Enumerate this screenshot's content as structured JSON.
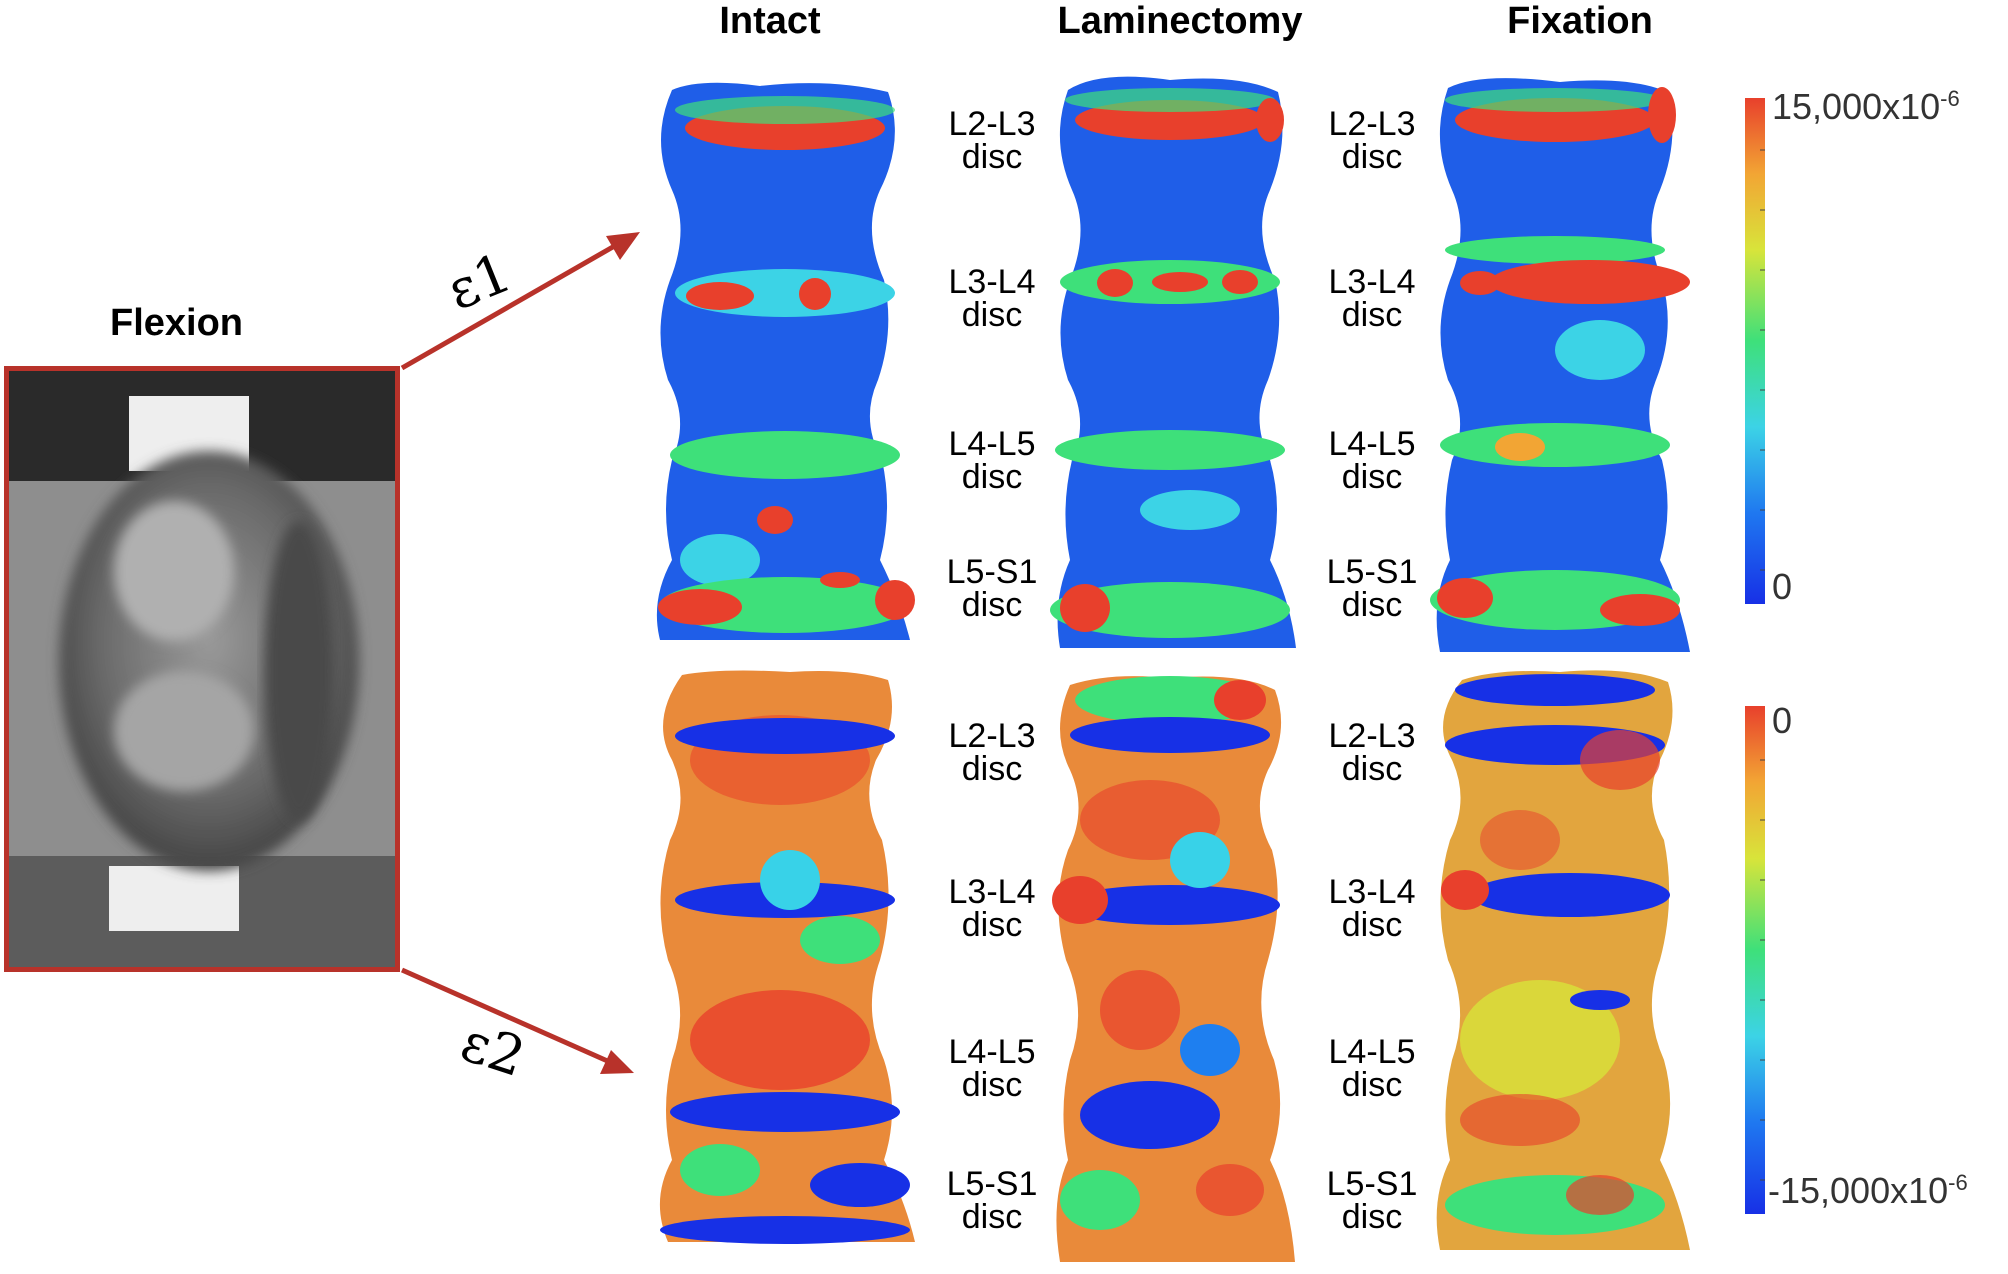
{
  "left_panel": {
    "title": "Flexion",
    "arrow_top_label": "ε1",
    "arrow_bottom_label": "ε2"
  },
  "columns": [
    "Intact",
    "Laminectomy",
    "Fixation"
  ],
  "disc_labels": [
    {
      "line1": "L2-L3",
      "line2": "disc"
    },
    {
      "line1": "L3-L4",
      "line2": "disc"
    },
    {
      "line1": "L4-L5",
      "line2": "disc"
    },
    {
      "line1": "L5-S1",
      "line2": "disc"
    }
  ],
  "colorbars": {
    "top": {
      "max_label": "15,000x10",
      "max_exp": "-6",
      "min_label": "0"
    },
    "bottom": {
      "max_label": "0",
      "min_label": "-15,000x10",
      "min_exp": "-6"
    }
  },
  "colors": {
    "frame": "#b8322a",
    "arrow": "#b8322a",
    "scale": [
      "#1c30e0",
      "#1e7ff0",
      "#38d2e8",
      "#3ee07a",
      "#d8e43a",
      "#f2a534",
      "#e8402c"
    ]
  }
}
